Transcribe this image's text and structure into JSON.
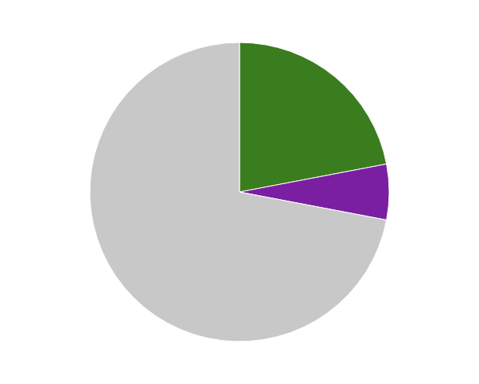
{
  "chart_data": {
    "type": "pie",
    "values": [
      22,
      6,
      72
    ],
    "colors": [
      "#3a7d1e",
      "#7b1fa2",
      "#c8c8c8"
    ]
  }
}
